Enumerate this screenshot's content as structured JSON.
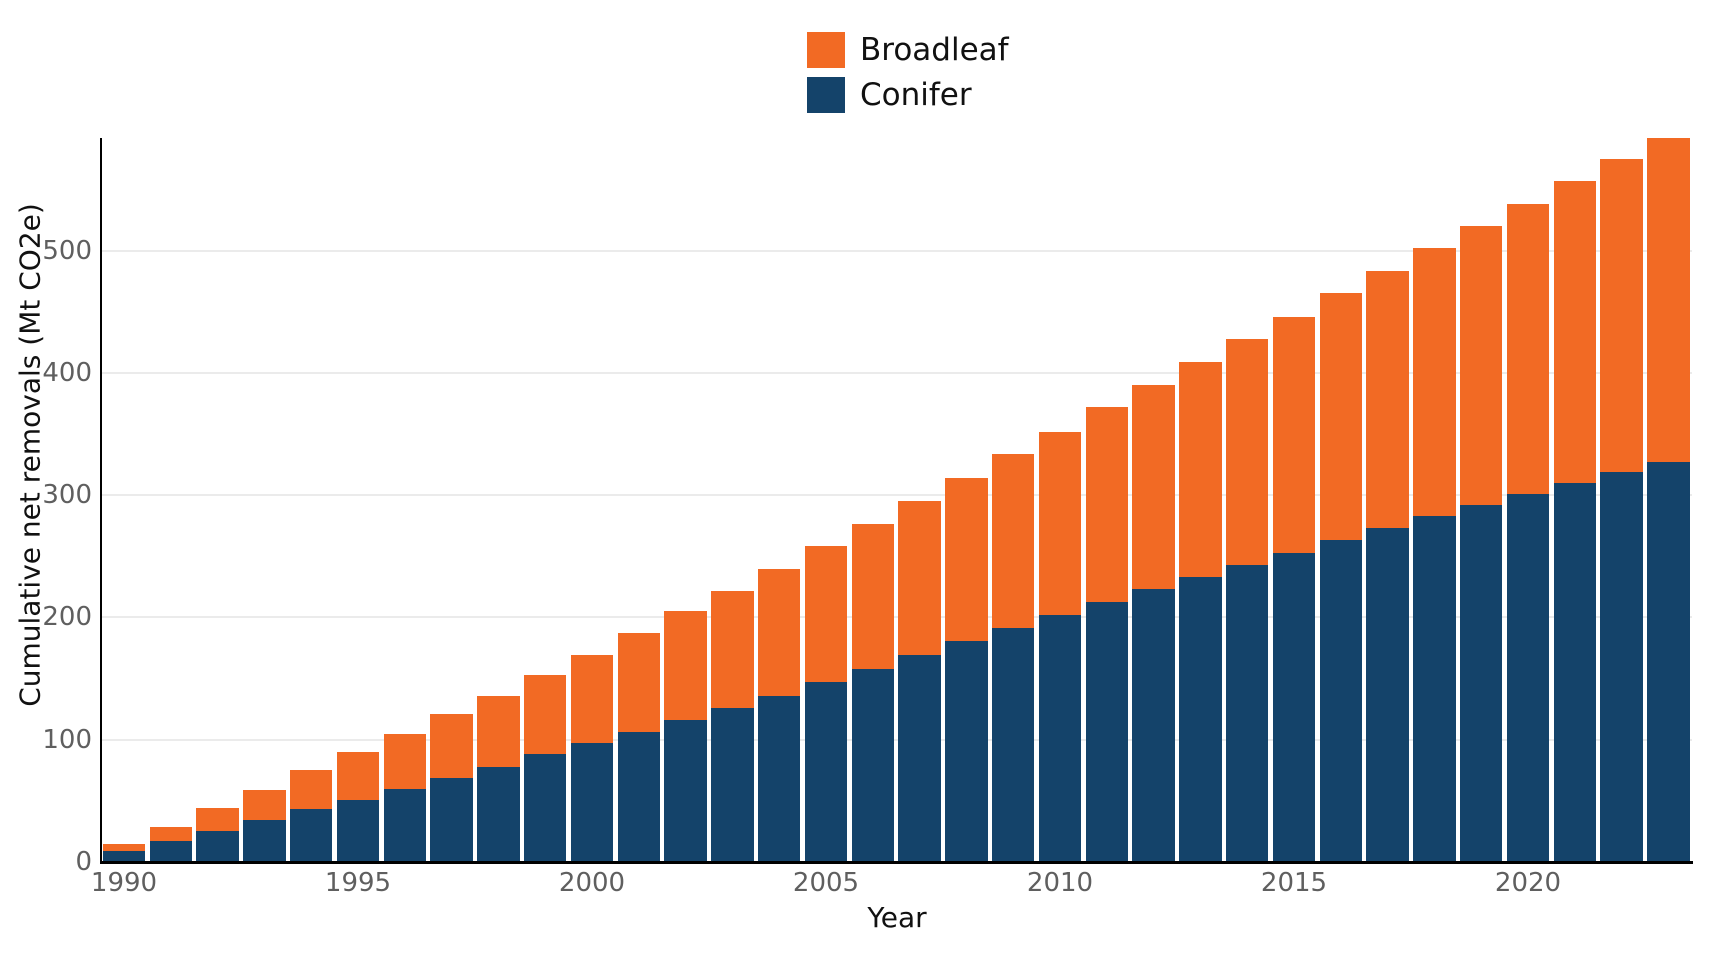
{
  "legend": {
    "items": [
      {
        "label": "Broadleaf",
        "color": "#F26A24"
      },
      {
        "label": "Conifer",
        "color": "#14436A"
      }
    ]
  },
  "axes": {
    "x_title": "Year",
    "y_title": "Cumulative net removals (Mt CO2e)",
    "y_tick_labels": [
      "0",
      "100",
      "200",
      "300",
      "400",
      "500"
    ],
    "x_tick_labels": [
      "1990",
      "1995",
      "2000",
      "2005",
      "2010",
      "2015",
      "2020"
    ]
  },
  "chart_data": {
    "type": "bar",
    "stacked": true,
    "title": "",
    "xlabel": "Year",
    "ylabel": "Cumulative net removals (Mt CO2e)",
    "categories": [
      1990,
      1991,
      1992,
      1993,
      1994,
      1995,
      1996,
      1997,
      1998,
      1999,
      2000,
      2001,
      2002,
      2003,
      2004,
      2005,
      2006,
      2007,
      2008,
      2009,
      2010,
      2011,
      2012,
      2013,
      2014,
      2015,
      2016,
      2017,
      2018,
      2019,
      2020,
      2021,
      2022,
      2023
    ],
    "series": [
      {
        "name": "Conifer",
        "color": "#14436A",
        "values": [
          9,
          17,
          25,
          34,
          43,
          51,
          60,
          69,
          78,
          88,
          97,
          106,
          116,
          126,
          136,
          147,
          158,
          169,
          181,
          191,
          202,
          213,
          223,
          233,
          243,
          253,
          263,
          273,
          283,
          292,
          301,
          310,
          319,
          327
        ]
      },
      {
        "name": "Broadleaf",
        "color": "#F26A24",
        "values": [
          6,
          12,
          19,
          25,
          32,
          39,
          45,
          52,
          58,
          65,
          72,
          81,
          89,
          96,
          104,
          111,
          118,
          126,
          133,
          143,
          150,
          159,
          167,
          176,
          185,
          193,
          202,
          210,
          219,
          228,
          237,
          247,
          256,
          265
        ]
      }
    ],
    "totals": [
      15,
      29,
      44,
      59,
      75,
      90,
      105,
      121,
      136,
      153,
      169,
      187,
      205,
      222,
      240,
      258,
      276,
      295,
      314,
      334,
      352,
      372,
      390,
      409,
      428,
      446,
      465,
      483,
      502,
      520,
      538,
      557,
      575,
      592
    ],
    "ylim": [
      0,
      592
    ],
    "y_ticks": [
      0,
      100,
      200,
      300,
      400,
      500
    ],
    "x_ticks": [
      1990,
      1995,
      2000,
      2005,
      2010,
      2015,
      2020
    ],
    "grid": "horizontal",
    "legend_position": "top-center"
  },
  "colors": {
    "broadleaf": "#F26A24",
    "conifer": "#14436A",
    "gridline": "#EBEBEB",
    "axis_line": "#000000",
    "tick_label": "#5F5F5F",
    "axis_title": "#111111",
    "background": "#FFFFFF"
  }
}
